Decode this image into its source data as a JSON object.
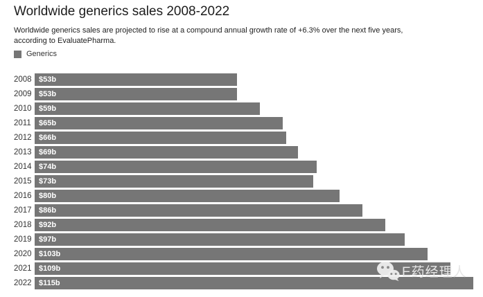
{
  "header": {
    "title": "Worldwide generics sales 2008-2022",
    "subtitle": "Worldwide generics sales are projected to rise at a compound annual growth rate of +6.3% over the next five years, according to EvaluatePharma."
  },
  "legend": {
    "label": "Generics",
    "swatch_color": "#767676"
  },
  "chart_data": {
    "type": "bar",
    "orientation": "horizontal",
    "title": "Worldwide generics sales 2008-2022",
    "categories": [
      "2008",
      "2009",
      "2010",
      "2011",
      "2012",
      "2013",
      "2014",
      "2015",
      "2016",
      "2017",
      "2018",
      "2019",
      "2020",
      "2021",
      "2022"
    ],
    "values": [
      53,
      53,
      59,
      65,
      66,
      69,
      74,
      73,
      80,
      86,
      92,
      97,
      103,
      109,
      115
    ],
    "value_labels": [
      "$53b",
      "$53b",
      "$59b",
      "$65b",
      "$66b",
      "$69b",
      "$74b",
      "$73b",
      "$80b",
      "$86b",
      "$92b",
      "$97b",
      "$103b",
      "$109b",
      "$115b"
    ],
    "xlim": [
      0,
      115
    ],
    "bar_color": "#767676",
    "value_label_color": "#ffffff",
    "legend": [
      "Generics"
    ],
    "legend_position": "top-left",
    "grid": false
  },
  "watermark": {
    "icon": "wechat-icon",
    "text": "E药经理人",
    "color": "#e6e6e6"
  }
}
